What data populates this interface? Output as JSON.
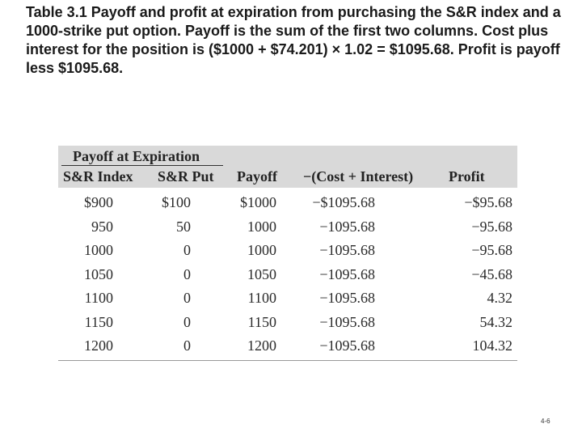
{
  "caption": "Table 3.1  Payoff and profit at expiration from purchasing the S&R index and a 1000-strike put option. Payoff is the sum of the first two columns. Cost plus interest for the position is ($1000 + $74.201) × 1.02 = $1095.68. Profit is payoff less $1095.68.",
  "table": {
    "group_header": "Payoff at Expiration",
    "columns": [
      "S&R Index",
      "S&R Put",
      "Payoff",
      "−(Cost + Interest)",
      "Profit"
    ],
    "rows": [
      [
        "$900",
        "$100",
        "$1000",
        "−$1095.68",
        "−$95.68"
      ],
      [
        "950",
        "50",
        "1000",
        "−1095.68",
        "−95.68"
      ],
      [
        "1000",
        "0",
        "1000",
        "−1095.68",
        "−95.68"
      ],
      [
        "1050",
        "0",
        "1050",
        "−1095.68",
        "−45.68"
      ],
      [
        "1100",
        "0",
        "1100",
        "−1095.68",
        "4.32"
      ],
      [
        "1150",
        "0",
        "1150",
        "−1095.68",
        "54.32"
      ],
      [
        "1200",
        "0",
        "1200",
        "−1095.68",
        "104.32"
      ]
    ]
  },
  "page_number": "4-6"
}
